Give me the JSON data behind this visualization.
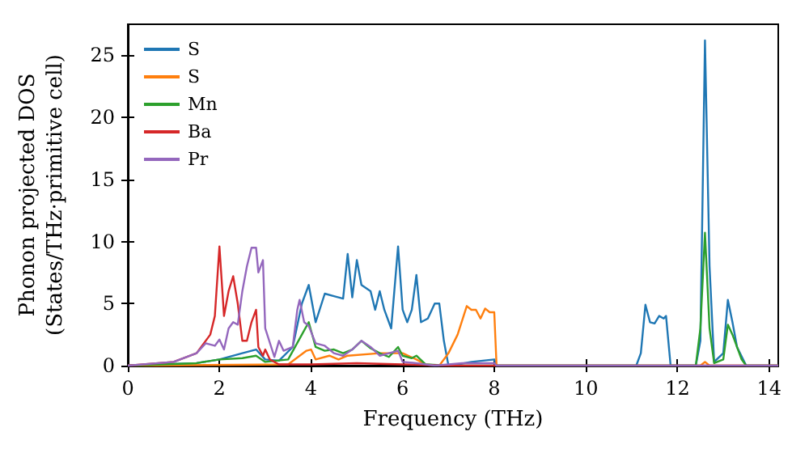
{
  "chart_data": {
    "type": "line",
    "xlabel": "Frequency (THz)",
    "ylabel": "Phonon projected DOS\n(States/THz·primitive cell)",
    "xlim": [
      0,
      14.2
    ],
    "xticks": [
      0,
      2,
      4,
      6,
      8,
      10,
      12,
      14
    ],
    "ylim": [
      0,
      27.5
    ],
    "yticks": [
      0,
      5,
      10,
      15,
      20,
      25
    ],
    "grid": false,
    "legend": "top left",
    "marker": "none",
    "line_style": "solid",
    "series": [
      {
        "name": "S",
        "color": "#1f77b4",
        "x": [
          0,
          1.5,
          2,
          2.5,
          2.8,
          3,
          3.3,
          3.6,
          3.8,
          3.95,
          4.1,
          4.3,
          4.5,
          4.7,
          4.8,
          4.9,
          5,
          5.1,
          5.3,
          5.4,
          5.5,
          5.6,
          5.75,
          5.9,
          6,
          6.1,
          6.2,
          6.3,
          6.4,
          6.55,
          6.7,
          6.8,
          6.9,
          7,
          7.2,
          7.5,
          8,
          8.05,
          11.1,
          11.2,
          11.3,
          11.4,
          11.5,
          11.6,
          11.7,
          11.75,
          11.85,
          12.4,
          12.5,
          12.6,
          12.7,
          12.8,
          13,
          13.1,
          13.2,
          13.3,
          13.5,
          14.2
        ],
        "values": [
          0,
          0.2,
          0.5,
          1,
          1.3,
          0.5,
          0.4,
          1.5,
          5,
          6.5,
          3.5,
          5.8,
          5.6,
          5.4,
          9,
          5.5,
          8.5,
          6.5,
          6,
          4.5,
          6,
          4.5,
          3,
          9.6,
          4.5,
          3.5,
          4.5,
          7.3,
          3.5,
          3.8,
          5,
          5,
          2,
          0,
          0.1,
          0.3,
          0.5,
          0,
          0,
          1,
          4.9,
          3.5,
          3.4,
          4,
          3.8,
          4,
          0,
          0,
          2,
          26.2,
          8,
          0.3,
          1,
          5.3,
          3.5,
          1.5,
          0,
          0
        ]
      },
      {
        "name": "S",
        "color": "#ff7f0e",
        "x": [
          0,
          3.5,
          3.9,
          4,
          4.1,
          4.4,
          4.6,
          4.8,
          5.5,
          6,
          6.3,
          6.5,
          6.8,
          7,
          7.2,
          7.4,
          7.5,
          7.6,
          7.7,
          7.8,
          7.9,
          8,
          8.05,
          12.5,
          12.6,
          12.7,
          14.2
        ],
        "values": [
          0,
          0.1,
          1.2,
          1.3,
          0.5,
          0.8,
          0.5,
          0.8,
          1,
          1,
          0.5,
          0.1,
          0,
          1,
          2.5,
          4.8,
          4.5,
          4.5,
          3.8,
          4.6,
          4.3,
          4.3,
          0,
          0,
          0.3,
          0,
          0
        ]
      },
      {
        "name": "Mn",
        "color": "#2ca02c",
        "x": [
          0,
          1.5,
          2,
          2.5,
          2.8,
          3,
          3.5,
          3.8,
          3.95,
          4.1,
          4.3,
          4.5,
          4.7,
          4.9,
          5.1,
          5.3,
          5.5,
          5.7,
          5.9,
          6,
          6.2,
          6.3,
          6.5,
          7,
          12.4,
          12.5,
          12.6,
          12.7,
          12.8,
          13,
          13.1,
          13.2,
          13.4,
          13.5,
          14.2
        ],
        "values": [
          0,
          0.2,
          0.5,
          0.6,
          0.8,
          0.3,
          0.5,
          2.5,
          3.5,
          1.5,
          1.2,
          1.3,
          1,
          1.3,
          2,
          1.4,
          1,
          0.7,
          1.5,
          0.8,
          0.6,
          0.8,
          0.1,
          0,
          0,
          3,
          10.7,
          3,
          0.2,
          0.5,
          3.3,
          2.5,
          0.5,
          0,
          0
        ]
      },
      {
        "name": "Ba",
        "color": "#d62728",
        "x": [
          0,
          1,
          1.5,
          1.8,
          1.9,
          2,
          2.1,
          2.2,
          2.3,
          2.4,
          2.5,
          2.6,
          2.7,
          2.8,
          2.85,
          2.95,
          3,
          3.1,
          3.3,
          4,
          5,
          6,
          7,
          14.2
        ],
        "values": [
          0,
          0.3,
          1,
          2.5,
          4,
          9.6,
          4,
          6,
          7.2,
          5,
          2,
          2,
          3.5,
          4.5,
          1.5,
          0.8,
          1.3,
          0.5,
          0.1,
          0.1,
          0.2,
          0.1,
          0,
          0
        ]
      },
      {
        "name": "Pr",
        "color": "#9467bd",
        "x": [
          0,
          1,
          1.5,
          1.7,
          1.9,
          2,
          2.1,
          2.2,
          2.3,
          2.4,
          2.5,
          2.6,
          2.7,
          2.8,
          2.85,
          2.95,
          3,
          3.2,
          3.3,
          3.4,
          3.6,
          3.7,
          3.75,
          3.85,
          3.95,
          4.1,
          4.3,
          4.5,
          4.7,
          4.9,
          5.1,
          5.3,
          5.5,
          5.9,
          6,
          6.3,
          6.7,
          7.3,
          8,
          8.05,
          14.2
        ],
        "values": [
          0,
          0.3,
          1,
          1.8,
          1.6,
          2.1,
          1.3,
          3,
          3.5,
          3.3,
          6,
          8,
          9.5,
          9.5,
          7.5,
          8.5,
          3,
          0.7,
          2,
          1.2,
          1.5,
          4.5,
          5.3,
          3.5,
          3.2,
          1.8,
          1.6,
          1,
          0.8,
          1.3,
          2,
          1.5,
          0.8,
          1.2,
          0.3,
          0.2,
          0,
          0.2,
          0.2,
          0,
          0
        ]
      }
    ]
  }
}
